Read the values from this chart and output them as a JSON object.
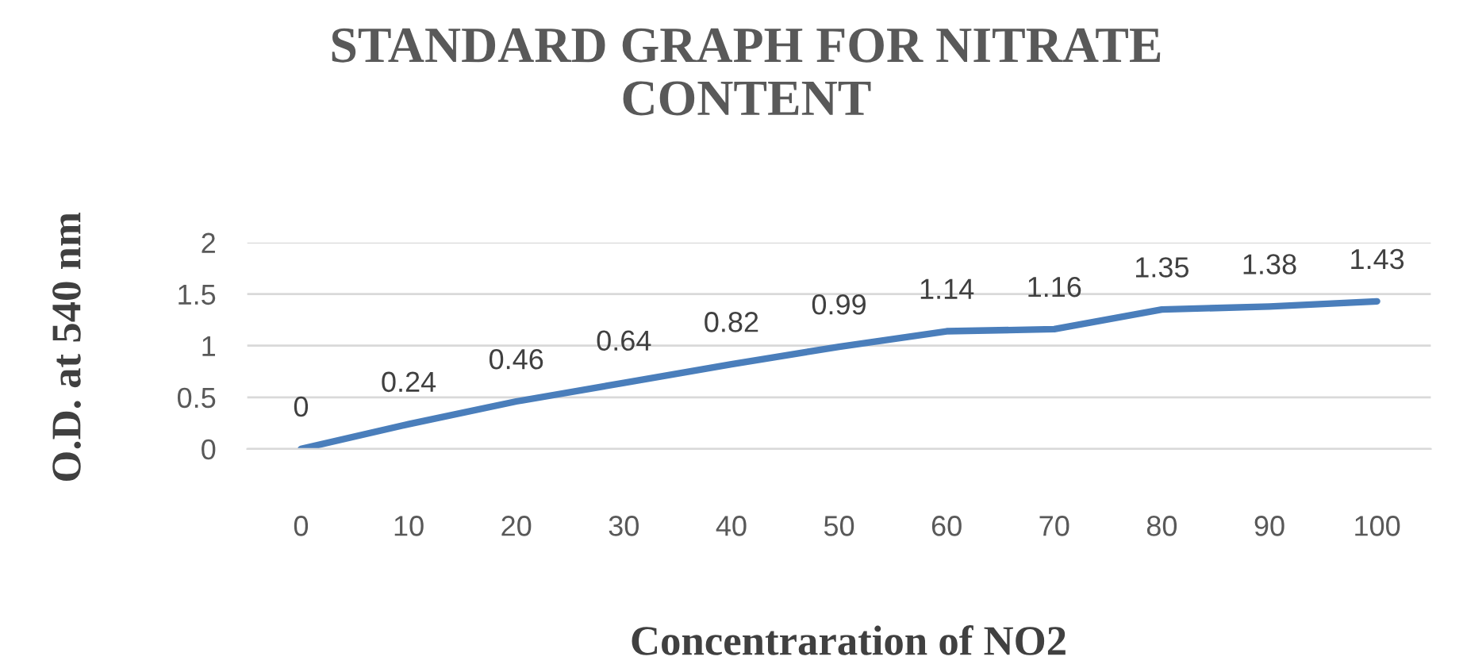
{
  "chart_data": {
    "type": "line",
    "title": "STANDARD GRAPH FOR NITRATE\nCONTENT",
    "xlabel": "Concentraration of NO2",
    "ylabel": "O.D. at 540 nm",
    "categories": [
      "0",
      "10",
      "20",
      "30",
      "40",
      "50",
      "60",
      "70",
      "80",
      "90",
      "100"
    ],
    "series": [
      {
        "color": "#4a7ebb",
        "values": [
          0,
          0.24,
          0.46,
          0.64,
          0.82,
          0.99,
          1.14,
          1.16,
          1.35,
          1.38,
          1.43
        ]
      }
    ],
    "ylim": [
      0,
      2
    ],
    "yticks": [
      0,
      0.5,
      1,
      1.5,
      2
    ],
    "grid": "y",
    "data_labels": true,
    "marker": "none",
    "line_style": "solid"
  }
}
